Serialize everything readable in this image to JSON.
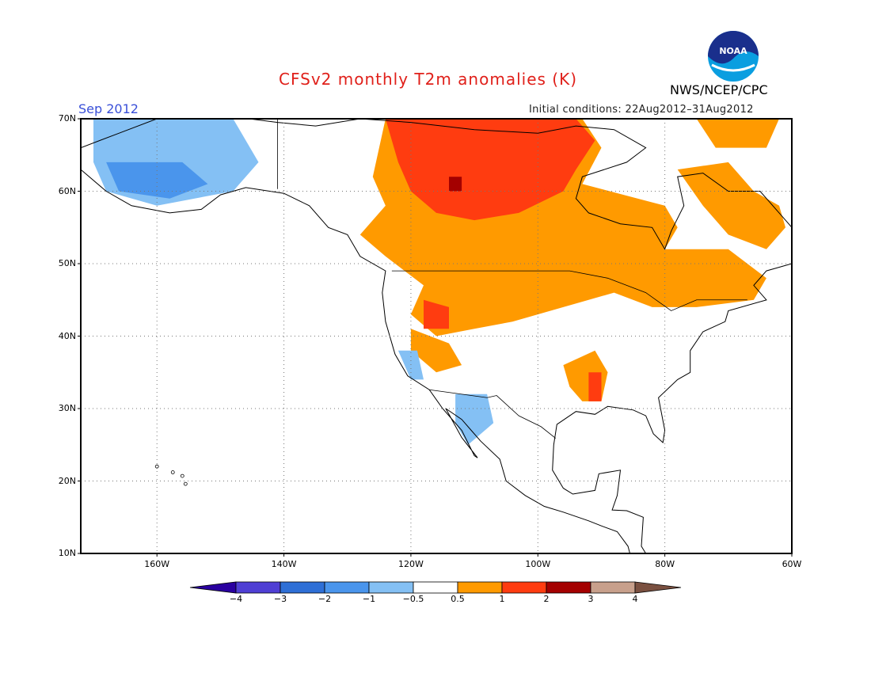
{
  "title": "CFSv2 monthly T2m anomalies (K)",
  "month": "Sep 2012",
  "initial_conditions": "Initial conditions: 22Aug2012–31Aug2012",
  "organization": "NWS/NCEP/CPC",
  "logo_text": "NOAA",
  "latitude_labels": [
    "70N",
    "60N",
    "50N",
    "40N",
    "30N",
    "20N",
    "10N"
  ],
  "longitude_labels": [
    "160W",
    "140W",
    "120W",
    "100W",
    "80W",
    "60W"
  ],
  "colorbar": {
    "labels": [
      "−4",
      "−3",
      "−2",
      "−1",
      "−0.5",
      "0.5",
      "1",
      "2",
      "3",
      "4"
    ],
    "colors": [
      "#2a00a0",
      "#4f3fd4",
      "#2e6fd6",
      "#4a95ec",
      "#84c0f4",
      "#ffffff",
      "#ff9a00",
      "#ff3c10",
      "#a40000",
      "#c8a08c",
      "#7a5040"
    ]
  },
  "map": {
    "lon_range": [
      -172,
      -60
    ],
    "lat_range": [
      10,
      70
    ],
    "anomaly_regions": [
      {
        "class": "0.5 to 1",
        "color": "#ff9a00",
        "region": "Canada and northern US belt",
        "polygon": [
          [
            -124,
            70
          ],
          [
            -93,
            70
          ],
          [
            -90,
            66
          ],
          [
            -93,
            61
          ],
          [
            -80,
            58
          ],
          [
            -78,
            55
          ],
          [
            -80,
            52
          ],
          [
            -70,
            52
          ],
          [
            -64,
            48
          ],
          [
            -66,
            45
          ],
          [
            -75,
            44
          ],
          [
            -82,
            44
          ],
          [
            -88,
            46
          ],
          [
            -96,
            44
          ],
          [
            -104,
            42
          ],
          [
            -110,
            41
          ],
          [
            -116,
            40
          ],
          [
            -120,
            43
          ],
          [
            -118,
            47
          ],
          [
            -124,
            51
          ],
          [
            -128,
            54
          ],
          [
            -124,
            58
          ],
          [
            -126,
            62
          ]
        ]
      },
      {
        "class": "0.5 to 1",
        "color": "#ff9a00",
        "region": "Northern Quebec and Labrador",
        "polygon": [
          [
            -78,
            63
          ],
          [
            -70,
            64
          ],
          [
            -66,
            60
          ],
          [
            -62,
            58
          ],
          [
            -61,
            55
          ],
          [
            -64,
            52
          ],
          [
            -70,
            54
          ],
          [
            -74,
            58
          ]
        ]
      },
      {
        "class": "0.5 to 1",
        "color": "#ff9a00",
        "region": "Baffin Island",
        "polygon": [
          [
            -75,
            70
          ],
          [
            -62,
            70
          ],
          [
            -64,
            66
          ],
          [
            -72,
            66
          ]
        ]
      },
      {
        "class": "0.5 to 1",
        "color": "#ff9a00",
        "region": "Mississippi valley",
        "polygon": [
          [
            -96,
            36
          ],
          [
            -91,
            38
          ],
          [
            -89,
            35
          ],
          [
            -90,
            31
          ],
          [
            -93,
            31
          ],
          [
            -95,
            33
          ]
        ]
      },
      {
        "class": "0.5 to 1",
        "color": "#ff9a00",
        "region": "Southwest",
        "polygon": [
          [
            -120,
            41
          ],
          [
            -114,
            39
          ],
          [
            -112,
            36
          ],
          [
            -116,
            35
          ],
          [
            -120,
            38
          ]
        ]
      },
      {
        "class": "1 to 2",
        "color": "#ff3c10",
        "region": "Northern Canada core",
        "polygon": [
          [
            -124,
            70
          ],
          [
            -94,
            70
          ],
          [
            -91,
            67
          ],
          [
            -94,
            63
          ],
          [
            -96,
            60
          ],
          [
            -103,
            57
          ],
          [
            -110,
            56
          ],
          [
            -116,
            57
          ],
          [
            -120,
            60
          ],
          [
            -122,
            64
          ]
        ]
      },
      {
        "class": "1 to 2",
        "color": "#ff3c10",
        "region": "Northern Rockies",
        "polygon": [
          [
            -118,
            45
          ],
          [
            -114,
            44
          ],
          [
            -114,
            41
          ],
          [
            -118,
            41
          ]
        ]
      },
      {
        "class": "1 to 2",
        "color": "#ff3c10",
        "region": "Lower Mississippi",
        "polygon": [
          [
            -92,
            35
          ],
          [
            -90,
            35
          ],
          [
            -90,
            31
          ],
          [
            -92,
            31
          ]
        ]
      },
      {
        "class": "2 to 3",
        "color": "#a40000",
        "region": "Small core near Great Slave Lake",
        "polygon": [
          [
            -114,
            62
          ],
          [
            -112,
            62
          ],
          [
            -112,
            60
          ],
          [
            -114,
            60
          ]
        ]
      },
      {
        "class": "-0.5 to -1",
        "color": "#84c0f4",
        "region": "Western Alaska",
        "polygon": [
          [
            -170,
            70
          ],
          [
            -148,
            70
          ],
          [
            -144,
            64
          ],
          [
            -148,
            60
          ],
          [
            -160,
            58
          ],
          [
            -168,
            60
          ],
          [
            -170,
            64
          ]
        ]
      },
      {
        "class": "-1 to -2",
        "color": "#4a95ec",
        "region": "Southwest Alaska",
        "polygon": [
          [
            -168,
            64
          ],
          [
            -156,
            64
          ],
          [
            -152,
            61
          ],
          [
            -158,
            59
          ],
          [
            -166,
            60
          ]
        ]
      },
      {
        "class": "-0.5 to -1",
        "color": "#84c0f4",
        "region": "Northwest Mexico",
        "polygon": [
          [
            -113,
            32
          ],
          [
            -108,
            32
          ],
          [
            -107,
            28
          ],
          [
            -111,
            25
          ],
          [
            -113,
            28
          ]
        ]
      },
      {
        "class": "-0.5 to -1",
        "color": "#84c0f4",
        "region": "California coast",
        "polygon": [
          [
            -122,
            38
          ],
          [
            -119,
            38
          ],
          [
            -118,
            34
          ],
          [
            -120,
            34
          ]
        ]
      }
    ]
  }
}
